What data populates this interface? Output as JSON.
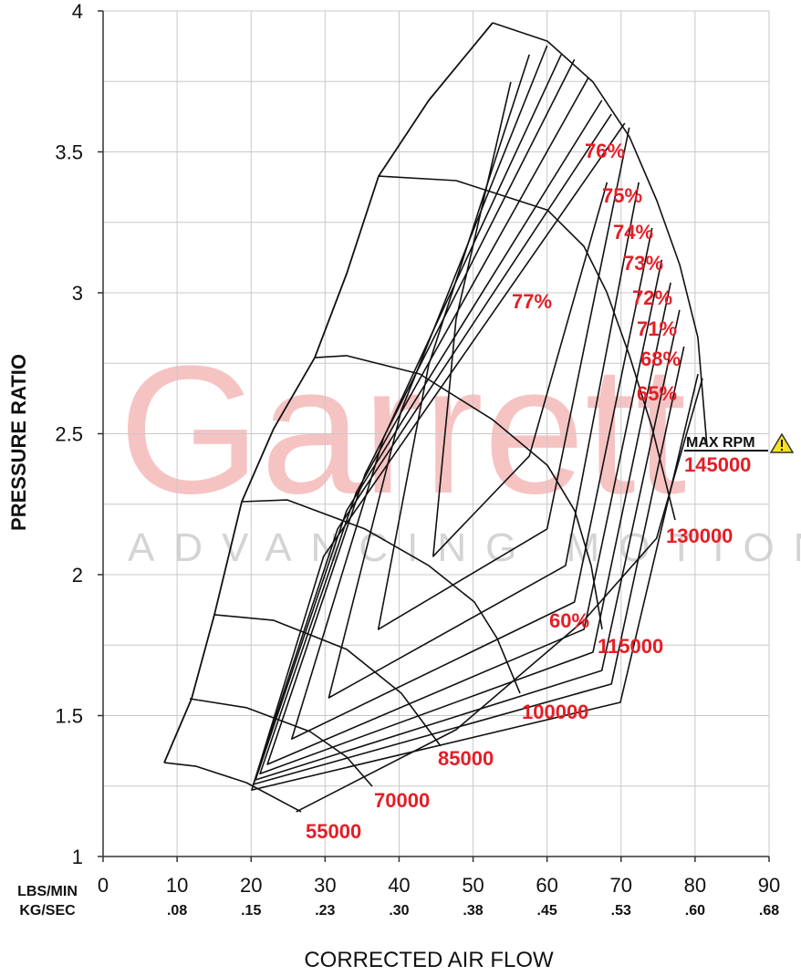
{
  "chart_data": {
    "type": "compressor_map",
    "y_label": "PRESSURE RATIO",
    "x_label": "CORRECTED AIR FLOW",
    "x_unit_label": "LBS/MIN",
    "x2_unit_label": "KG/SEC",
    "watermark": [
      "Garrett",
      "ADVANCING MOTION"
    ],
    "max_rpm_label": "MAX RPM",
    "xlim": [
      0,
      90
    ],
    "ylim": [
      1,
      4
    ],
    "xticks": [
      0,
      10,
      20,
      30,
      40,
      50,
      60,
      70,
      80,
      90
    ],
    "x2ticks": [
      {
        "value": 10,
        "label": ".08"
      },
      {
        "value": 20,
        "label": ".15"
      },
      {
        "value": 30,
        "label": ".23"
      },
      {
        "value": 40,
        "label": ".30"
      },
      {
        "value": 50,
        "label": ".38"
      },
      {
        "value": 60,
        "label": ".45"
      },
      {
        "value": 70,
        "label": ".53"
      },
      {
        "value": 80,
        "label": ".60"
      },
      {
        "value": 90,
        "label": ".68"
      }
    ],
    "yticks": [
      1,
      1.5,
      2,
      2.5,
      3,
      3.5,
      4
    ],
    "y_minor_grid": [
      1.25,
      1.75,
      2.25,
      2.75,
      3.25,
      3.75
    ],
    "grid": true,
    "line_color": "#111111",
    "label_color": "#e41e26",
    "surge_line": {
      "x": [
        8.26,
        11.96,
        15.04,
        18.74,
        23.05,
        28.6,
        32.92,
        37.23,
        44.01,
        52.64
      ],
      "values": [
        1.333,
        1.56,
        1.858,
        2.259,
        2.518,
        2.77,
        3.068,
        3.414,
        3.683,
        3.958
      ]
    },
    "speed_lines": [
      {
        "name": "55000",
        "x": [
          8.26,
          12.58,
          19.36,
          26.75
        ],
        "values": [
          1.333,
          1.32,
          1.262,
          1.159
        ]
      },
      {
        "name": "70000",
        "x": [
          11.71,
          19.36,
          27.99,
          32.92,
          36.37
        ],
        "values": [
          1.56,
          1.528,
          1.443,
          1.353,
          1.249
        ]
      },
      {
        "name": "85000",
        "x": [
          15.04,
          23.05,
          32.92,
          40.32,
          45.62
        ],
        "values": [
          1.858,
          1.838,
          1.735,
          1.579,
          1.392
        ]
      },
      {
        "name": "100000",
        "x": [
          18.74,
          24.9,
          35.38,
          44.01,
          50.18,
          53.26,
          56.34
        ],
        "values": [
          2.259,
          2.265,
          2.162,
          2.032,
          1.903,
          1.773,
          1.579
        ]
      },
      {
        "name": "115000",
        "x": [
          28.6,
          32.92,
          42.78,
          52.64,
          60.04,
          63.74,
          65.96,
          67.44
        ],
        "values": [
          2.77,
          2.777,
          2.712,
          2.55,
          2.388,
          2.227,
          2.032,
          1.806
        ]
      },
      {
        "name": "130000",
        "x": [
          37.23,
          47.71,
          60.04,
          64.97,
          68.06,
          71.14,
          74.22,
          77.3
        ],
        "values": [
          3.414,
          3.398,
          3.294,
          3.165,
          3.003,
          2.777,
          2.518,
          2.194
        ]
      },
      {
        "name": "145000",
        "x": [
          52.64,
          60.04,
          66.2,
          71.14,
          74.84,
          77.92,
          80.38,
          81.62
        ],
        "values": [
          3.958,
          3.893,
          3.748,
          3.553,
          3.327,
          3.1,
          2.841,
          2.453
        ]
      }
    ],
    "efficiency_islands": [
      {
        "name": "77%",
        "x": [
          55.1,
          47.7,
          44.6,
          57.6,
          68.1
        ],
        "values": [
          3.748,
          2.906,
          2.065,
          2.421,
          3.392
        ]
      },
      {
        "name": "76%",
        "x": [
          57.6,
          44.0,
          37.2,
          60.0,
          71.1
        ],
        "values": [
          3.845,
          2.744,
          1.806,
          2.162,
          3.586
        ]
      },
      {
        "name": "75%",
        "x": [
          60.0,
          40.3,
          30.5,
          62.5,
          72.4
        ],
        "values": [
          3.877,
          2.583,
          1.563,
          2.032,
          3.392
        ]
      },
      {
        "name": "74%",
        "x": [
          61.9,
          37.9,
          25.5,
          63.7,
          74.2
        ],
        "values": [
          3.845,
          2.485,
          1.417,
          1.903,
          3.23
        ]
      },
      {
        "name": "73%",
        "x": [
          63.7,
          35.4,
          22.2,
          65.0,
          75.5
        ],
        "values": [
          3.828,
          2.356,
          1.327,
          1.806,
          3.117
        ]
      },
      {
        "name": "72%",
        "x": [
          65.6,
          34.2,
          21.2,
          66.2,
          76.7
        ],
        "values": [
          3.764,
          2.291,
          1.294,
          1.725,
          3.036
        ]
      },
      {
        "name": "71%",
        "x": [
          67.4,
          32.9,
          20.6,
          67.4,
          77.9
        ],
        "values": [
          3.683,
          2.227,
          1.272,
          1.66,
          2.939
        ]
      },
      {
        "name": "68%",
        "x": [
          68.7,
          31.7,
          20.3,
          68.7,
          78.5
        ],
        "values": [
          3.634,
          2.162,
          1.256,
          1.612,
          2.809
        ]
      },
      {
        "name": "65%",
        "x": [
          70.5,
          29.8,
          20.1,
          69.9,
          80.4
        ],
        "values": [
          3.602,
          2.065,
          1.236,
          1.547,
          2.712
        ]
      },
      {
        "name": "60%",
        "x": [
          26.1,
          47.7,
          65.0,
          74.8,
          81.0
        ],
        "values": [
          1.159,
          1.45,
          1.838,
          2.129,
          2.696
        ]
      }
    ]
  }
}
